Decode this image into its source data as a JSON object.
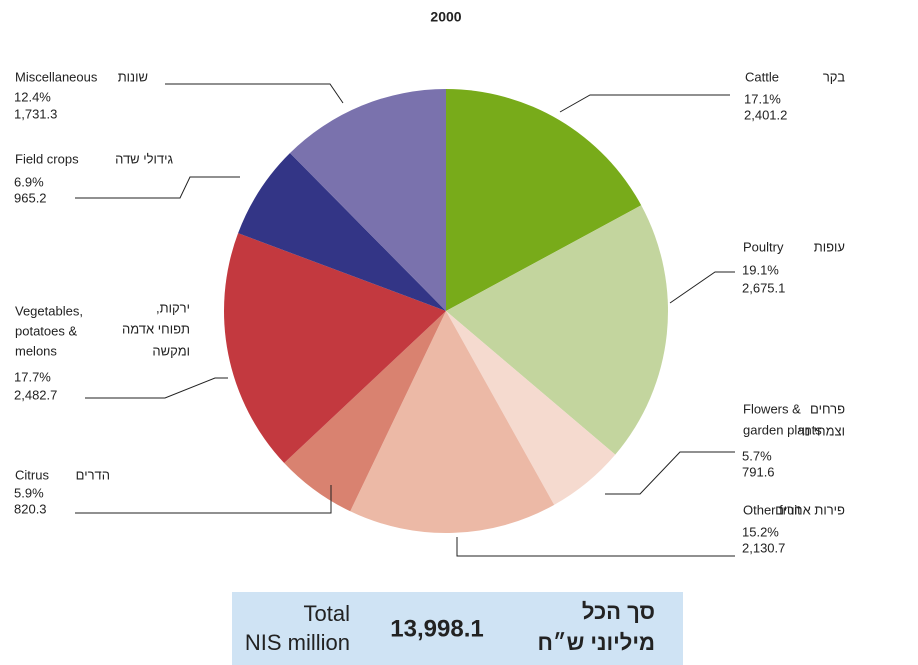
{
  "chart_data": {
    "type": "pie",
    "title": "2000",
    "slices": [
      {
        "label": [
          "Cattle"
        ],
        "label_he": [
          "בקר"
        ],
        "amount": "2,401.2",
        "color": "#78ab1a"
      },
      {
        "label": [
          "Poultry"
        ],
        "label_he": [
          "עופות"
        ],
        "amount": "2,675.1",
        "color": "#c3d59e"
      },
      {
        "label": [
          "Flowers &",
          "garden plants"
        ],
        "label_he": [
          "פרחים",
          "וצמחי נוי"
        ],
        "amount": "791.6",
        "color": "#f5dacf"
      },
      {
        "label": [
          "Other fruit"
        ],
        "label_he": [
          "פירות אחרים"
        ],
        "amount": "2,130.7",
        "color": "#ecb9a6"
      },
      {
        "label": [
          "Citrus"
        ],
        "label_he": [
          "הדרים"
        ],
        "amount": "820.3",
        "color": "#d98270"
      },
      {
        "label": [
          "Vegetables,",
          "potatoes &",
          "melons"
        ],
        "label_he": [
          "ירקות,",
          "תפוחי אדמה",
          "ומקשה"
        ],
        "amount": "2,482.7",
        "color": "#c3393f"
      },
      {
        "label": [
          "Field crops"
        ],
        "label_he": [
          "גידולי שדה"
        ],
        "amount": "965.2",
        "color": "#333586"
      },
      {
        "label": [
          "Miscellaneous"
        ],
        "label_he": [
          "שונות"
        ],
        "amount": "1,731.3",
        "color": "#7a72ad"
      }
    ],
    "values": [
      17.1,
      19.1,
      5.7,
      15.2,
      5.9,
      17.7,
      6.9,
      12.4
    ],
    "value_labels": [
      "17.1%",
      "19.1%",
      "5.7%",
      "15.2%",
      "5.9%",
      "17.7%",
      "6.9%",
      "12.4%"
    ],
    "total": {
      "label": [
        "Total",
        "NIS million"
      ],
      "label_he": [
        "סך הכל",
        "מיליוני ש״ח"
      ],
      "value": "13,998.1"
    }
  }
}
